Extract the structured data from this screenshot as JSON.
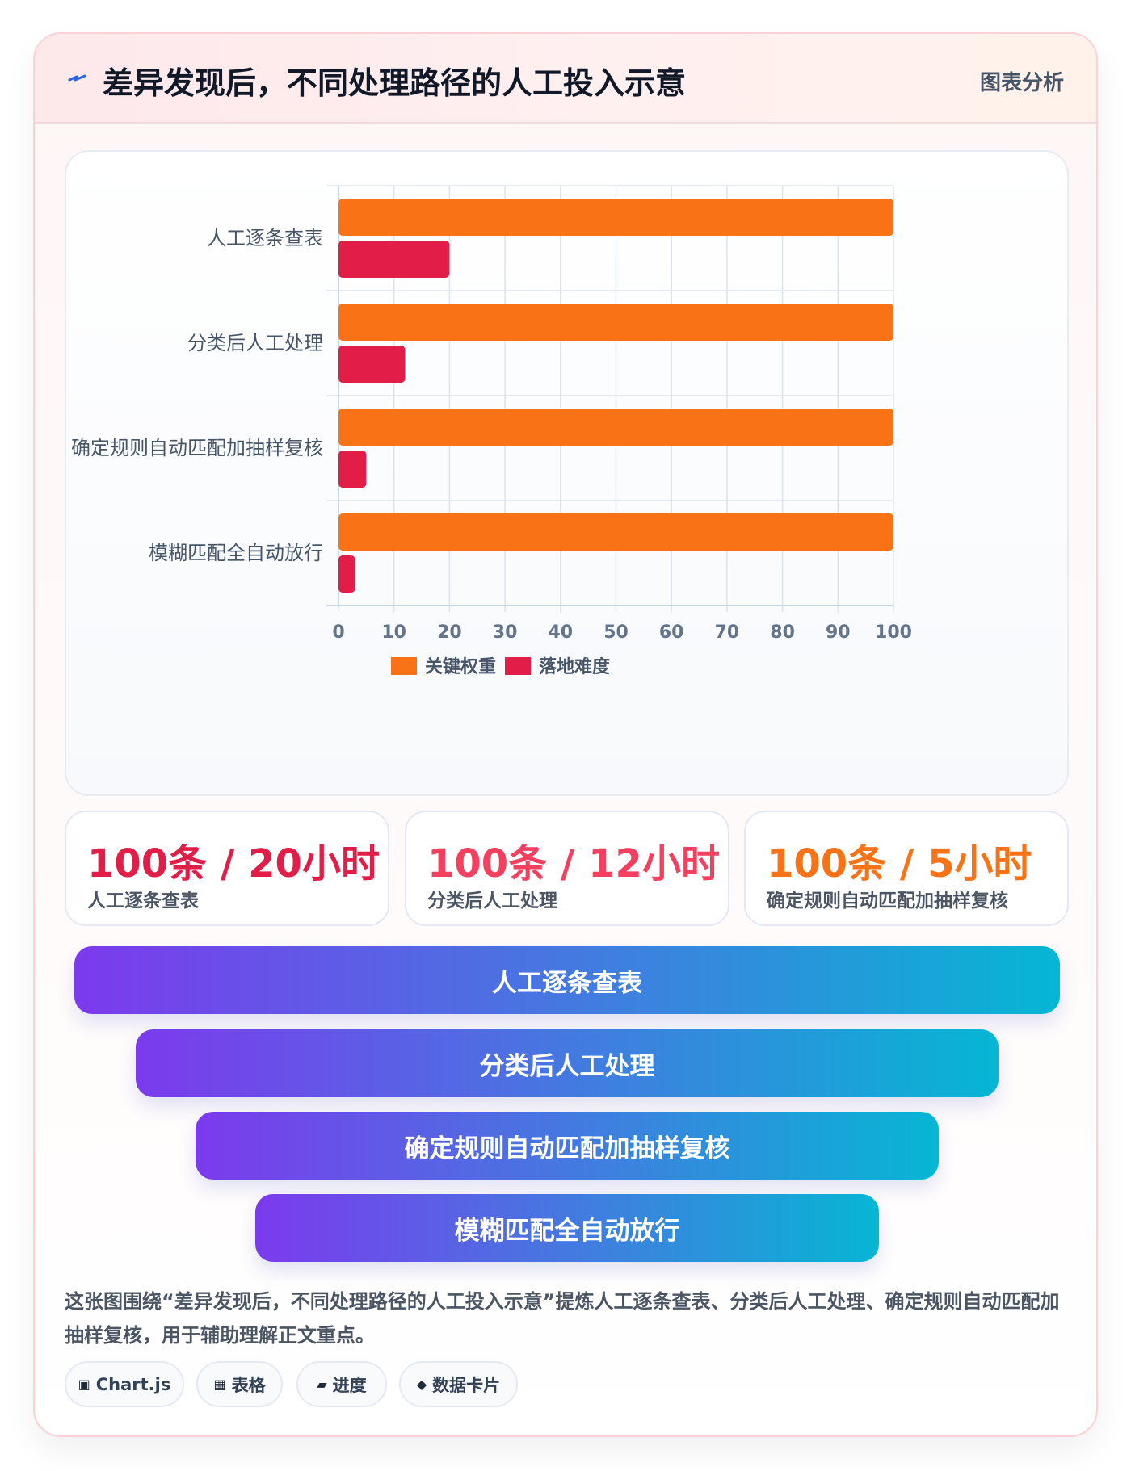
{
  "header": {
    "icon": "lightning-icon",
    "title": "差异发现后，不同处理路径的人工投入示意",
    "tag": "图表分析"
  },
  "chart_data": {
    "type": "bar",
    "orientation": "horizontal",
    "categories": [
      "人工逐条查表",
      "分类后人工处理",
      "确定规则自动匹配加抽样复核",
      "模糊匹配全自动放行"
    ],
    "series": [
      {
        "name": "关键权重",
        "color": "#f97316",
        "values": [
          100,
          100,
          100,
          100
        ]
      },
      {
        "name": "落地难度",
        "color": "#e11d48",
        "values": [
          20,
          12,
          5,
          3
        ]
      }
    ],
    "xlim": [
      0,
      100
    ],
    "x_ticks": [
      "0",
      "10",
      "20",
      "30",
      "40",
      "50",
      "60",
      "70",
      "80",
      "90",
      "100"
    ],
    "grid": true,
    "legend_position": "bottom"
  },
  "stats": [
    {
      "value": "100条 / 20小时",
      "label": "人工逐条查表",
      "color": "#e11d48"
    },
    {
      "value": "100条 / 12小时",
      "label": "分类后人工处理",
      "color": "#f43f5e"
    },
    {
      "value": "100条 / 5小时",
      "label": "确定规则自动匹配加抽样复核",
      "color": "#f97316"
    }
  ],
  "funnel": [
    "人工逐条查表",
    "分类后人工处理",
    "确定规则自动匹配加抽样复核",
    "模糊匹配全自动放行"
  ],
  "description": "这张图围绕“差异发现后，不同处理路径的人工投入示意”提炼人工逐条查表、分类后人工处理、确定规则自动匹配加抽样复核，用于辅助理解正文重点。",
  "tags": [
    {
      "icon": "chip-icon",
      "glyph": "▣",
      "label": "Chart.js"
    },
    {
      "icon": "table-icon",
      "glyph": "▦",
      "label": "表格"
    },
    {
      "icon": "progress-icon",
      "glyph": "▰",
      "label": "进度"
    },
    {
      "icon": "diamond-icon",
      "glyph": "◆",
      "label": "数据卡片"
    }
  ]
}
